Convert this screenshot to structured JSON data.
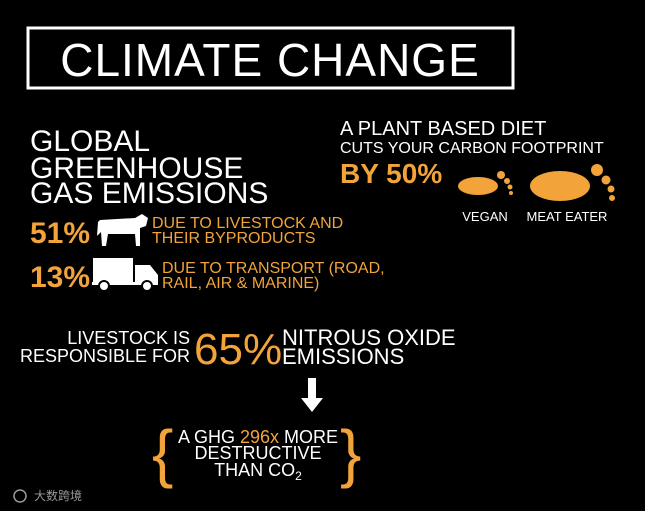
{
  "header": {
    "title": "CLIMATE CHANGE"
  },
  "emissions": {
    "heading": [
      "GLOBAL",
      "GREENHOUSE",
      "GAS EMISSIONS"
    ],
    "items": [
      {
        "percent": "51%",
        "lines": [
          "DUE TO LIVESTOCK AND",
          "THEIR BYPRODUCTS"
        ]
      },
      {
        "percent": "13%",
        "lines": [
          "DUE TO TRANSPORT (ROAD,",
          "RAIL, AIR & MARINE)"
        ]
      }
    ]
  },
  "diet": {
    "lines": [
      "A PLANT BASED DIET",
      "CUTS YOUR CARBON FOOTPRINT"
    ],
    "highlight": "BY 50%",
    "labels": [
      "VEGAN",
      "MEAT EATER"
    ]
  },
  "nitrous": {
    "left": [
      "LIVESTOCK IS",
      "RESPONSIBLE FOR"
    ],
    "percent": "65%",
    "right": [
      "NITROUS OXIDE",
      "EMISSIONS"
    ]
  },
  "ghg": {
    "line1": [
      "A GHG ",
      "296x",
      " MORE"
    ],
    "line2": "DESTRUCTIVE",
    "line3": [
      "THAN CO",
      "2"
    ]
  },
  "watermark": "大数跨境"
}
